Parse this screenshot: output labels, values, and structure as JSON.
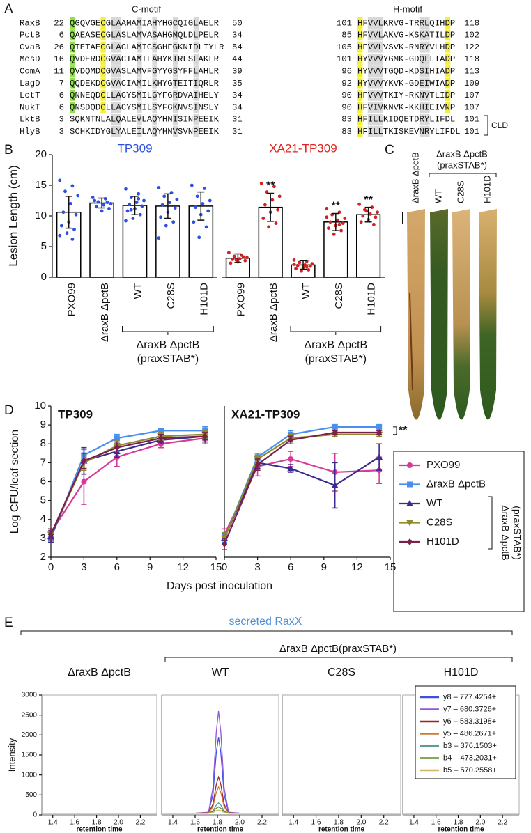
{
  "panel_labels": [
    "A",
    "B",
    "C",
    "D",
    "E"
  ],
  "alignment": {
    "headers": [
      "C-motif",
      "H-motif"
    ],
    "bracket_label": "CLD",
    "rows": [
      {
        "name": "RaxB",
        "start1": 22,
        "seq1": "QGQVGECGLAAMAMIAHYHGCQIGLAELR",
        "end1": 50,
        "start2": 101,
        "seq2": "HFVVLKRVG-TRRLQIHDP",
        "end2": 118
      },
      {
        "name": "PctB",
        "start1": 6,
        "seq1": "QAEASECGLASLAMVASAHGMQLDLPELR",
        "end1": 34,
        "start2": 85,
        "seq2": "HFVVLAKVG-KSKATILDP",
        "end2": 102
      },
      {
        "name": "CvaB",
        "start1": 26,
        "seq1": "QTETAECGLACLAMICSGHFGKNIDLIYLR",
        "end1": 54,
        "start2": 105,
        "seq2": "HFVVLVSVK-RNRYVLHDP",
        "end2": 122
      },
      {
        "name": "MesD",
        "start1": 16,
        "seq1": "QVDERDCGVACIAMILAHYKTRLSLAKLR",
        "end1": 44,
        "start2": 101,
        "seq2": "HYVVVYGMK-GDQLLIADP",
        "end2": 118
      },
      {
        "name": "ComA",
        "start1": 11,
        "seq1": "QVDQMDCGVASLAMVFGYYGSYFFLAHLR",
        "end1": 39,
        "start2": 96,
        "seq2": "HYVVVTGQD-KDSIHIADP",
        "end2": 113
      },
      {
        "name": "LagD",
        "start1": 7,
        "seq1": "QQDEKDCGVACIAMILKHYGTEITIQRLR",
        "end1": 35,
        "start2": 92,
        "seq2": "HYVVVYKVK-GDEIWIADP",
        "end2": 109
      },
      {
        "name": "LctT",
        "start1": 6,
        "seq1": "QNNEQDCLLACYSMILGYFGRDVAIHELY",
        "end1": 34,
        "start2": 90,
        "seq2": "HFVVVTKIY-RKNVTLIDP",
        "end2": 107
      },
      {
        "name": "NukT",
        "start1": 6,
        "seq1": "QNSDQDCLLACYSMILSYFGKNVSINSLY",
        "end1": 34,
        "start2": 90,
        "seq2": "HFVIVKNVK-KKHIEIVNP",
        "end2": 107
      },
      {
        "name": "LktB",
        "start1": 3,
        "seq1": "SQKNTNLALQALEVLAQYHNISINPEEIK",
        "end1": 31,
        "start2": 83,
        "seq2": "HFILLKIDQETDRYLIFDL",
        "end2": 101
      },
      {
        "name": "HlyB",
        "start1": 3,
        "seq1": "SCHKIDYGLYALEILAQYHNVSVNPEEIK",
        "end1": 31,
        "start2": 83,
        "seq2": "HFILLTKISKEVNRYLIFDL",
        "end2": 101
      }
    ]
  },
  "leaf_photo": {
    "labels": [
      "ΔraxB ΔpctB",
      "WT",
      "C28S",
      "H101D"
    ],
    "group_label": [
      "ΔraxB ΔpctB",
      "(praxSTAB*)"
    ]
  },
  "figure_E": {
    "title": "secreted RaxX",
    "group_label": "ΔraxB ΔpctB(praxSTAB*)"
  },
  "chart_data": [
    {
      "type": "bar",
      "title": "TP309",
      "title_color": "#2d4fe0",
      "ylabel": "Lesion Length (cm)",
      "categories": [
        "PXO99",
        "ΔraxB ΔpctB",
        "WT",
        "C28S",
        "H101D"
      ],
      "group_label": [
        "ΔraxB ΔpctB",
        "(praxSTAB*)"
      ],
      "values": [
        10.6,
        12.1,
        11.7,
        11.6,
        11.6
      ],
      "errors": [
        2.6,
        0.8,
        1.5,
        2.0,
        2.3
      ],
      "points": [
        [
          15.8,
          14.9,
          14.0,
          13.3,
          12.0,
          10.6,
          10.2,
          9.0,
          8.4,
          7.8,
          7.2,
          6.8,
          6.2
        ],
        [
          13.0,
          12.8,
          12.3,
          12.0,
          11.8,
          11.5,
          11.2,
          10.8,
          12.5,
          12.2
        ],
        [
          14.4,
          13.6,
          13.0,
          12.5,
          12.2,
          11.9,
          11.6,
          11.2,
          10.8,
          10.2,
          9.6,
          9.2,
          12.8,
          11.0
        ],
        [
          14.6,
          13.8,
          13.2,
          12.7,
          12.2,
          11.8,
          11.3,
          10.6,
          9.8,
          9.0,
          8.4,
          6.4
        ],
        [
          15.0,
          14.5,
          13.2,
          12.5,
          12.0,
          11.4,
          10.8,
          10.2,
          9.0,
          8.2,
          6.5
        ]
      ],
      "color": "#ffffff",
      "edge_color": "#000000",
      "point_color": "#2d4fe0",
      "ylim": [
        0,
        20
      ],
      "yticks": [
        0,
        5,
        10,
        15,
        20
      ]
    },
    {
      "type": "bar",
      "title": "XA21-TP309",
      "title_color": "#e0231f",
      "categories": [
        "PXO99",
        "ΔraxB ΔpctB",
        "WT",
        "C28S",
        "H101D"
      ],
      "group_label": [
        "ΔraxB ΔpctB",
        "(praxSTAB*)"
      ],
      "values": [
        3.1,
        11.4,
        2.0,
        9.0,
        10.2
      ],
      "errors": [
        0.7,
        2.3,
        0.7,
        1.4,
        1.2
      ],
      "significance": [
        null,
        "**",
        null,
        "**",
        "**"
      ],
      "points": [
        [
          4.0,
          3.6,
          3.4,
          3.2,
          3.0,
          2.9,
          2.7,
          2.5,
          2.3,
          3.3,
          2.8
        ],
        [
          15.3,
          14.8,
          13.9,
          13.2,
          12.6,
          11.8,
          11.0,
          10.6,
          9.6,
          8.8,
          8.2
        ],
        [
          2.8,
          2.6,
          2.4,
          2.2,
          2.0,
          1.9,
          1.8,
          1.6,
          1.4,
          1.2,
          1.0,
          2.1,
          1.7
        ],
        [
          11.2,
          10.6,
          10.2,
          9.6,
          9.3,
          9.0,
          8.8,
          8.4,
          8.0,
          7.6,
          7.0,
          9.8,
          8.6
        ],
        [
          11.9,
          11.4,
          11.0,
          10.6,
          10.3,
          10.0,
          9.8,
          9.4,
          9.0,
          8.6,
          10.8
        ]
      ],
      "color": "#ffffff",
      "edge_color": "#000000",
      "point_color": "#d42020",
      "ylim": [
        0,
        20
      ]
    },
    {
      "type": "line",
      "title": "TP309",
      "ylabel": "Log CFU/leaf section",
      "xlabel": "Days post inoculation",
      "x": [
        0,
        3,
        6,
        10,
        14
      ],
      "xlim": [
        0,
        15
      ],
      "xticks": [
        0,
        3,
        6,
        9,
        12,
        15
      ],
      "ylim": [
        2,
        10
      ],
      "yticks": [
        2,
        3,
        4,
        5,
        6,
        7,
        8,
        9,
        10
      ],
      "series": [
        {
          "color": "#d63a98",
          "marker": "circle",
          "values": [
            3.3,
            6.0,
            7.3,
            8.0,
            8.3
          ],
          "errors": [
            0.2,
            1.2,
            0.5,
            0.2,
            0.3
          ]
        },
        {
          "color": "#4a8ff0",
          "marker": "square",
          "values": [
            3.0,
            7.4,
            8.3,
            8.7,
            8.7
          ],
          "errors": [
            0.2,
            0.3,
            0.2,
            0.1,
            0.2
          ]
        },
        {
          "color": "#3b2a8f",
          "marker": "triangle",
          "values": [
            3.1,
            7.1,
            7.6,
            8.2,
            8.4
          ],
          "errors": [
            0.3,
            0.7,
            0.3,
            0.2,
            0.3
          ]
        },
        {
          "color": "#8e8b2a",
          "marker": "triangle-down",
          "values": [
            3.2,
            7.0,
            7.9,
            8.4,
            8.5
          ],
          "errors": [
            0.3,
            0.4,
            0.3,
            0.2,
            0.2
          ]
        },
        {
          "color": "#7b1f4b",
          "marker": "diamond",
          "values": [
            3.2,
            7.1,
            7.8,
            8.3,
            8.4
          ],
          "errors": [
            0.3,
            0.4,
            0.3,
            0.2,
            0.2
          ]
        }
      ]
    },
    {
      "type": "line",
      "title": "XA21-TP309",
      "significance": "**",
      "legend_group_label": [
        "ΔraxB ΔpctB",
        "(praxSTAB*)"
      ],
      "x": [
        0,
        3,
        6,
        10,
        14
      ],
      "xlim": [
        0,
        15
      ],
      "xticks": [
        0,
        3,
        6,
        9,
        12,
        15
      ],
      "ylim": [
        2,
        10
      ],
      "series": [
        {
          "name": "PXO99",
          "color": "#d63a98",
          "marker": "circle",
          "values": [
            3.2,
            6.8,
            7.2,
            6.5,
            6.6
          ],
          "errors": [
            0.3,
            0.5,
            0.4,
            1.0,
            0.7
          ]
        },
        {
          "name": "ΔraxB ΔpctB",
          "color": "#4a8ff0",
          "marker": "square",
          "values": [
            3.0,
            7.3,
            8.5,
            8.9,
            8.9
          ],
          "errors": [
            0.2,
            0.2,
            0.2,
            0.1,
            0.1
          ]
        },
        {
          "name": "WT",
          "color": "#3b2a8f",
          "marker": "triangle",
          "values": [
            3.0,
            7.0,
            6.7,
            5.8,
            7.3
          ],
          "errors": [
            0.3,
            0.3,
            0.2,
            1.2,
            0.7
          ]
        },
        {
          "name": "C28S",
          "color": "#8e8b2a",
          "marker": "triangle-down",
          "values": [
            3.0,
            7.2,
            8.3,
            8.5,
            8.5
          ],
          "errors": [
            0.3,
            0.3,
            0.2,
            0.1,
            0.1
          ]
        },
        {
          "name": "H101D",
          "color": "#7b1f4b",
          "marker": "diamond",
          "values": [
            2.7,
            6.9,
            8.2,
            8.6,
            8.6
          ],
          "errors": [
            0.3,
            0.3,
            0.2,
            0.1,
            0.1
          ]
        }
      ]
    },
    {
      "type": "line",
      "title": "ΔraxB ΔpctB",
      "ylabel": "Intensity",
      "xlabel": "retention time",
      "x": [
        1.3,
        2.35
      ],
      "xlim": [
        1.3,
        2.35
      ],
      "xticks": [
        1.4,
        1.6,
        1.8,
        {
          "value": 2,
          "label": "2.0"
        },
        2.2
      ],
      "ylim": [
        0,
        3000
      ],
      "yticks": [
        0,
        500,
        1000,
        1500,
        2000,
        2500,
        3000
      ],
      "series": [
        {
          "color": "#3d4fe0",
          "values": [
            40,
            40
          ]
        },
        {
          "color": "#9257d9",
          "values": [
            40,
            40
          ]
        },
        {
          "color": "#9c2222",
          "values": [
            40,
            40
          ]
        },
        {
          "color": "#d2782e",
          "values": [
            40,
            40
          ]
        },
        {
          "color": "#5e9c9c",
          "values": [
            40,
            40
          ]
        },
        {
          "color": "#5d8c28",
          "values": [
            40,
            40
          ]
        },
        {
          "color": "#d0b464",
          "values": [
            40,
            40
          ]
        }
      ]
    },
    {
      "type": "line",
      "title": "WT",
      "xlabel": "retention time",
      "x": [
        1.3,
        1.6,
        1.72,
        1.76,
        1.79,
        1.81,
        1.83,
        1.86,
        1.9,
        2.0,
        2.35
      ],
      "xlim": [
        1.3,
        2.35
      ],
      "xticks": [
        1.4,
        1.6,
        1.8,
        {
          "value": 2,
          "label": "2.0"
        },
        2.2
      ],
      "ylim": [
        0,
        3000
      ],
      "series": [
        {
          "color": "#3d4fe0",
          "values": [
            40,
            40,
            61,
            518,
            1568,
            1950,
            1568,
            518,
            61,
            40,
            40
          ]
        },
        {
          "color": "#9257d9",
          "values": [
            40,
            40,
            68,
            680,
            2088,
            2600,
            2088,
            680,
            68,
            40,
            40
          ]
        },
        {
          "color": "#9c2222",
          "values": [
            40,
            40,
            50,
            268,
            768,
            950,
            768,
            268,
            50,
            40,
            40
          ]
        },
        {
          "color": "#d2782e",
          "values": [
            40,
            40,
            47,
            205,
            568,
            700,
            568,
            205,
            47,
            40,
            40
          ]
        },
        {
          "color": "#5e9c9c",
          "values": [
            40,
            40,
            43,
            105,
            248,
            300,
            248,
            105,
            43,
            40,
            40
          ]
        },
        {
          "color": "#5d8c28",
          "values": [
            40,
            40,
            42,
            80,
            168,
            200,
            168,
            80,
            42,
            40,
            40
          ]
        },
        {
          "color": "#d0b464",
          "values": [
            40,
            40,
            41,
            60,
            104,
            120,
            104,
            60,
            41,
            40,
            40
          ]
        }
      ]
    },
    {
      "type": "line",
      "title": "C28S",
      "xlabel": "retention time",
      "x": [
        1.3,
        2.35
      ],
      "xlim": [
        1.3,
        2.35
      ],
      "xticks": [
        1.4,
        1.6,
        1.8,
        {
          "value": 2,
          "label": "2.0"
        },
        2.2
      ],
      "ylim": [
        0,
        3000
      ],
      "series": [
        {
          "color": "#3d4fe0",
          "values": [
            40,
            40
          ]
        },
        {
          "color": "#9257d9",
          "values": [
            40,
            40
          ]
        },
        {
          "color": "#9c2222",
          "values": [
            40,
            40
          ]
        },
        {
          "color": "#d2782e",
          "values": [
            40,
            40
          ]
        },
        {
          "color": "#5e9c9c",
          "values": [
            40,
            40
          ]
        },
        {
          "color": "#5d8c28",
          "values": [
            40,
            40
          ]
        },
        {
          "color": "#d0b464",
          "values": [
            40,
            40
          ]
        }
      ]
    },
    {
      "type": "line",
      "title": "H101D",
      "xlabel": "retention time",
      "x": [
        1.3,
        2.35
      ],
      "xlim": [
        1.3,
        2.35
      ],
      "xticks": [
        1.4,
        1.6,
        1.8,
        {
          "value": 2,
          "label": "2.0"
        },
        2.2
      ],
      "ylim": [
        0,
        3000
      ],
      "series": [
        {
          "name": "y8 – 777.4254+",
          "color": "#3d4fe0",
          "values": [
            40,
            40
          ]
        },
        {
          "name": "y7 – 680.3726+",
          "color": "#9257d9",
          "values": [
            40,
            40
          ]
        },
        {
          "name": "y6 – 583.3198+",
          "color": "#9c2222",
          "values": [
            40,
            40
          ]
        },
        {
          "name": "y5 – 486.2671+",
          "color": "#d2782e",
          "values": [
            40,
            40
          ]
        },
        {
          "name": "b3 – 376.1503+",
          "color": "#5e9c9c",
          "values": [
            40,
            40
          ]
        },
        {
          "name": "b4 – 473.2031+",
          "color": "#5d8c28",
          "values": [
            40,
            40
          ]
        },
        {
          "name": "b5 – 570.2558+",
          "color": "#d0b464",
          "values": [
            40,
            40
          ]
        }
      ]
    }
  ]
}
